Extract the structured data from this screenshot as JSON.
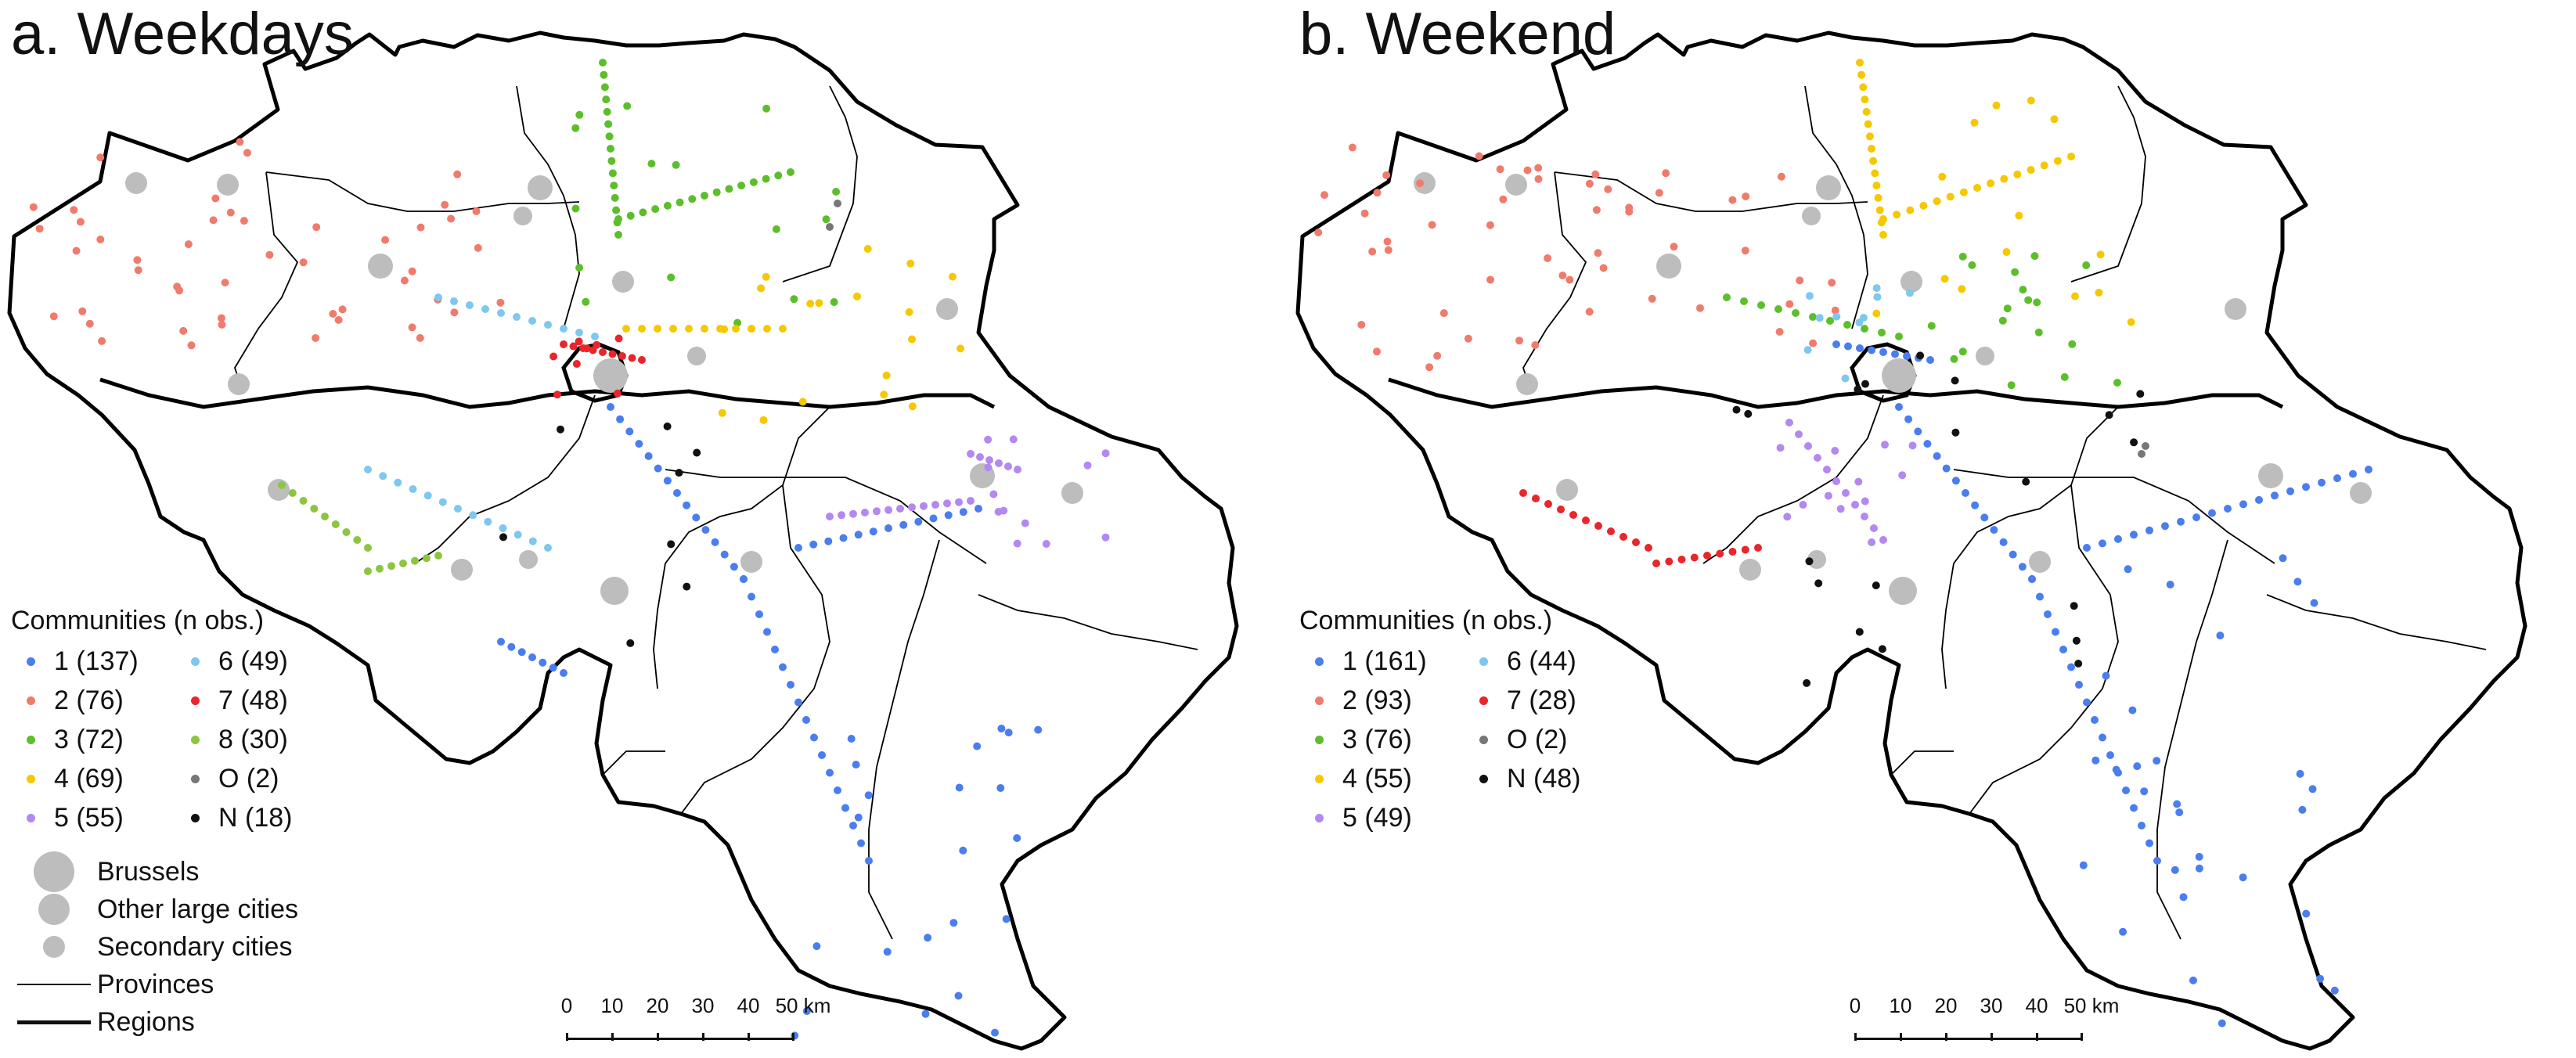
{
  "colors": {
    "c1": "#4a7df0",
    "c2": "#f07b6c",
    "c3": "#5cbf2a",
    "c4": "#f5c800",
    "c5": "#b388f0",
    "c6": "#7fc7ee",
    "c7": "#e8262b",
    "c8": "#8cc63f",
    "cO": "#777777",
    "cN": "#111111",
    "city": "#bdbdbd"
  },
  "panels": [
    {
      "title": "a. Weekdays",
      "legend_title": "Communities (n obs.)",
      "communities": [
        {
          "label": "1 (137)",
          "color_key": "c1"
        },
        {
          "label": "6 (49)",
          "color_key": "c6"
        },
        {
          "label": "2 (76)",
          "color_key": "c2"
        },
        {
          "label": "7 (48)",
          "color_key": "c7"
        },
        {
          "label": "3 (72)",
          "color_key": "c3"
        },
        {
          "label": "8 (30)",
          "color_key": "c8"
        },
        {
          "label": "4 (69)",
          "color_key": "c4"
        },
        {
          "label": "O (2)",
          "color_key": "cO"
        },
        {
          "label": "5 (55)",
          "color_key": "c5"
        },
        {
          "label": "N (18)",
          "color_key": "cN"
        }
      ],
      "symbols": [
        "Brussels",
        "Other large cities",
        "Secondary cities",
        "Provinces",
        "Regions"
      ],
      "scale": {
        "ticks": [
          "0",
          "10",
          "20",
          "30",
          "40",
          "50 km"
        ]
      }
    },
    {
      "title": "b. Weekend",
      "legend_title": "Communities (n obs.)",
      "communities": [
        {
          "label": "1 (161)",
          "color_key": "c1"
        },
        {
          "label": "6 (44)",
          "color_key": "c6"
        },
        {
          "label": "2 (93)",
          "color_key": "c2"
        },
        {
          "label": "7 (28)",
          "color_key": "c7"
        },
        {
          "label": "3 (76)",
          "color_key": "c3"
        },
        {
          "label": "O (2)",
          "color_key": "cO"
        },
        {
          "label": "4 (55)",
          "color_key": "c4"
        },
        {
          "label": "N (48)",
          "color_key": "cN"
        },
        {
          "label": "5 (49)",
          "color_key": "c5"
        }
      ],
      "scale": {
        "ticks": [
          "0",
          "10",
          "20",
          "30",
          "40",
          "50 km"
        ]
      }
    }
  ]
}
